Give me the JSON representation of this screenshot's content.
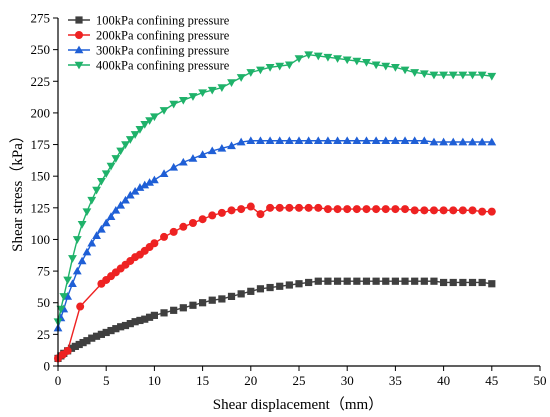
{
  "chart_data": {
    "type": "line",
    "xlabel": "Shear displacement（mm）",
    "ylabel": "Shear stress（kPa）",
    "xlim": [
      0,
      50
    ],
    "ylim": [
      0,
      275
    ],
    "xticks": [
      "0",
      "5",
      "10",
      "15",
      "20",
      "25",
      "30",
      "35",
      "40",
      "45",
      "50"
    ],
    "yticks": [
      "0",
      "25",
      "50",
      "75",
      "100",
      "125",
      "150",
      "175",
      "200",
      "225",
      "250",
      "275"
    ],
    "grid": false,
    "legend_position": "top-left",
    "series": [
      {
        "name": "100kPa confining pressure",
        "color": "#3f3f3f",
        "marker": "square",
        "x": [
          0,
          0.3,
          0.6,
          1.0,
          1.4,
          1.8,
          2.2,
          2.6,
          3.0,
          3.5,
          4.0,
          4.5,
          5.0,
          5.5,
          6.0,
          6.5,
          7.0,
          7.5,
          8.0,
          8.5,
          9.0,
          9.5,
          10.0,
          11.0,
          12.0,
          13.0,
          14.0,
          15.0,
          16.0,
          17.0,
          18.0,
          19.0,
          20.0,
          21.0,
          22.0,
          23.0,
          24.0,
          25.0,
          26.0,
          27.0,
          28.0,
          29.0,
          30.0,
          31.0,
          32.0,
          33.0,
          34.0,
          35.0,
          36.0,
          37.0,
          38.0,
          39.0,
          40.0,
          41.0,
          42.0,
          43.0,
          44.0,
          45.0
        ],
        "y": [
          6,
          8,
          10,
          12,
          14,
          15.5,
          17,
          18.5,
          20,
          22,
          23.5,
          25,
          26.5,
          28,
          29.5,
          31,
          32,
          33.5,
          35,
          36,
          37,
          38.5,
          40,
          42,
          44,
          46,
          48,
          50,
          52,
          53,
          55,
          57,
          59,
          61,
          62,
          63,
          64,
          65,
          66,
          67,
          67,
          67,
          67,
          67,
          67,
          67,
          67,
          67,
          67,
          67,
          67,
          67,
          66,
          66,
          66,
          66,
          66,
          65
        ]
      },
      {
        "name": "200kPa confining pressure",
        "color": "#ee2222",
        "marker": "circle",
        "x": [
          0,
          0.5,
          1.0,
          2.3,
          4.5,
          5.0,
          5.5,
          6.0,
          6.5,
          7.0,
          7.5,
          8.0,
          8.5,
          9.0,
          9.5,
          10.0,
          11.0,
          12.0,
          13.0,
          14.0,
          15.0,
          16.0,
          17.0,
          18.0,
          19.0,
          20.0,
          21.0,
          22.0,
          23.0,
          24.0,
          25.0,
          26.0,
          27.0,
          28.0,
          29.0,
          30.0,
          31.0,
          32.0,
          33.0,
          34.0,
          35.0,
          36.0,
          37.0,
          38.0,
          39.0,
          40.0,
          41.0,
          42.0,
          43.0,
          44.0,
          45.0
        ],
        "y": [
          6,
          9,
          12,
          47,
          65,
          68,
          71,
          74,
          77,
          80,
          83,
          86,
          88,
          91,
          94,
          97,
          102,
          106,
          110,
          113,
          116,
          119,
          121,
          123,
          124,
          126,
          120,
          125,
          125,
          125,
          125,
          125,
          125,
          124,
          124,
          124,
          124,
          124,
          124,
          124,
          124,
          124,
          123,
          123,
          123,
          123,
          123,
          123,
          123,
          122,
          122
        ]
      },
      {
        "name": "300kPa confining pressure",
        "color": "#1f5fd6",
        "marker": "triangle-up",
        "x": [
          0,
          0.3,
          0.6,
          1.0,
          1.5,
          2.0,
          2.5,
          3.0,
          3.5,
          4.0,
          4.5,
          5.0,
          5.5,
          6.0,
          6.5,
          7.0,
          7.5,
          8.0,
          8.5,
          9.0,
          9.5,
          10.0,
          11.0,
          12.0,
          13.0,
          14.0,
          15.0,
          16.0,
          17.0,
          18.0,
          19.0,
          20.0,
          21.0,
          22.0,
          23.0,
          24.0,
          25.0,
          26.0,
          27.0,
          28.0,
          29.0,
          30.0,
          31.0,
          32.0,
          33.0,
          34.0,
          35.0,
          36.0,
          37.0,
          38.0,
          39.0,
          40.0,
          41.0,
          42.0,
          43.0,
          44.0,
          45.0
        ],
        "y": [
          30,
          38,
          45,
          55,
          65,
          75,
          83,
          90,
          97,
          103,
          108,
          113,
          118,
          123,
          127,
          131,
          135,
          138,
          141,
          143,
          145,
          147,
          152,
          157,
          161,
          164,
          167,
          170,
          172,
          174,
          177,
          178,
          178,
          178,
          178,
          178,
          178,
          178,
          178,
          178,
          178,
          178,
          178,
          178,
          178,
          178,
          178,
          178,
          178,
          178,
          177,
          177,
          177,
          177,
          177,
          177,
          177
        ]
      },
      {
        "name": "400kPa confining pressure",
        "color": "#1fb26a",
        "marker": "triangle-down",
        "x": [
          0,
          0.3,
          0.6,
          1.0,
          1.5,
          2.0,
          2.5,
          3.0,
          3.5,
          4.0,
          4.5,
          5.0,
          5.5,
          6.0,
          6.5,
          7.0,
          7.5,
          8.0,
          8.5,
          9.0,
          9.5,
          10.0,
          11.0,
          12.0,
          13.0,
          14.0,
          15.0,
          16.0,
          17.0,
          18.0,
          19.0,
          20.0,
          21.0,
          22.0,
          23.0,
          24.0,
          25.0,
          26.0,
          27.0,
          28.0,
          29.0,
          30.0,
          31.0,
          32.0,
          33.0,
          34.0,
          35.0,
          36.0,
          37.0,
          38.0,
          39.0,
          40.0,
          41.0,
          42.0,
          43.0,
          44.0,
          45.0
        ],
        "y": [
          35,
          45,
          55,
          68,
          85,
          100,
          112,
          122,
          131,
          139,
          146,
          152,
          158,
          164,
          170,
          175,
          179,
          183,
          187,
          191,
          194,
          197,
          202,
          207,
          210,
          213,
          216,
          218,
          220,
          224,
          228,
          232,
          234,
          236,
          237,
          238,
          243,
          246,
          245,
          244,
          243,
          242,
          241,
          240,
          238,
          237,
          236,
          234,
          232,
          231,
          230,
          230,
          230,
          230,
          230,
          230,
          229
        ]
      }
    ]
  }
}
